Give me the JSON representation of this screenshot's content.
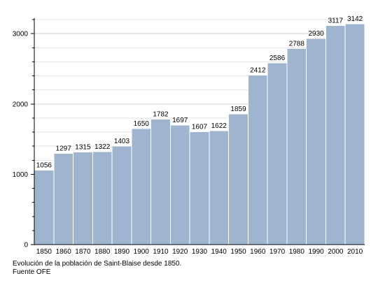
{
  "chart_data": {
    "type": "bar",
    "categories": [
      "1850",
      "1860",
      "1870",
      "1880",
      "1890",
      "1900",
      "1910",
      "1920",
      "1930",
      "1940",
      "1950",
      "1960",
      "1970",
      "1980",
      "1990",
      "2000",
      "2010"
    ],
    "values": [
      1056,
      1297,
      1315,
      1322,
      1403,
      1650,
      1782,
      1697,
      1607,
      1622,
      1859,
      2412,
      2586,
      2788,
      2930,
      3117,
      3142
    ],
    "data_labels": [
      "1056",
      "1297",
      "1315",
      "1322",
      "1403",
      "1650",
      "1782",
      "1697",
      "1607",
      "1622",
      "1859",
      "2412",
      "2586",
      "2788",
      "2930",
      "3117",
      "3142"
    ],
    "yticks": [
      "0",
      "1000",
      "2000",
      "3000"
    ],
    "ylim": [
      0,
      3200
    ],
    "grid": true,
    "colors": {
      "bar": "#9fb4cf",
      "bar_edge": "#ffffff",
      "grid": "#dcdcdc",
      "axis": "#000000"
    }
  },
  "caption": {
    "line1": "Evolución de la población de Saint-Blaise desde 1850.",
    "line2": "Fuente OFE"
  }
}
